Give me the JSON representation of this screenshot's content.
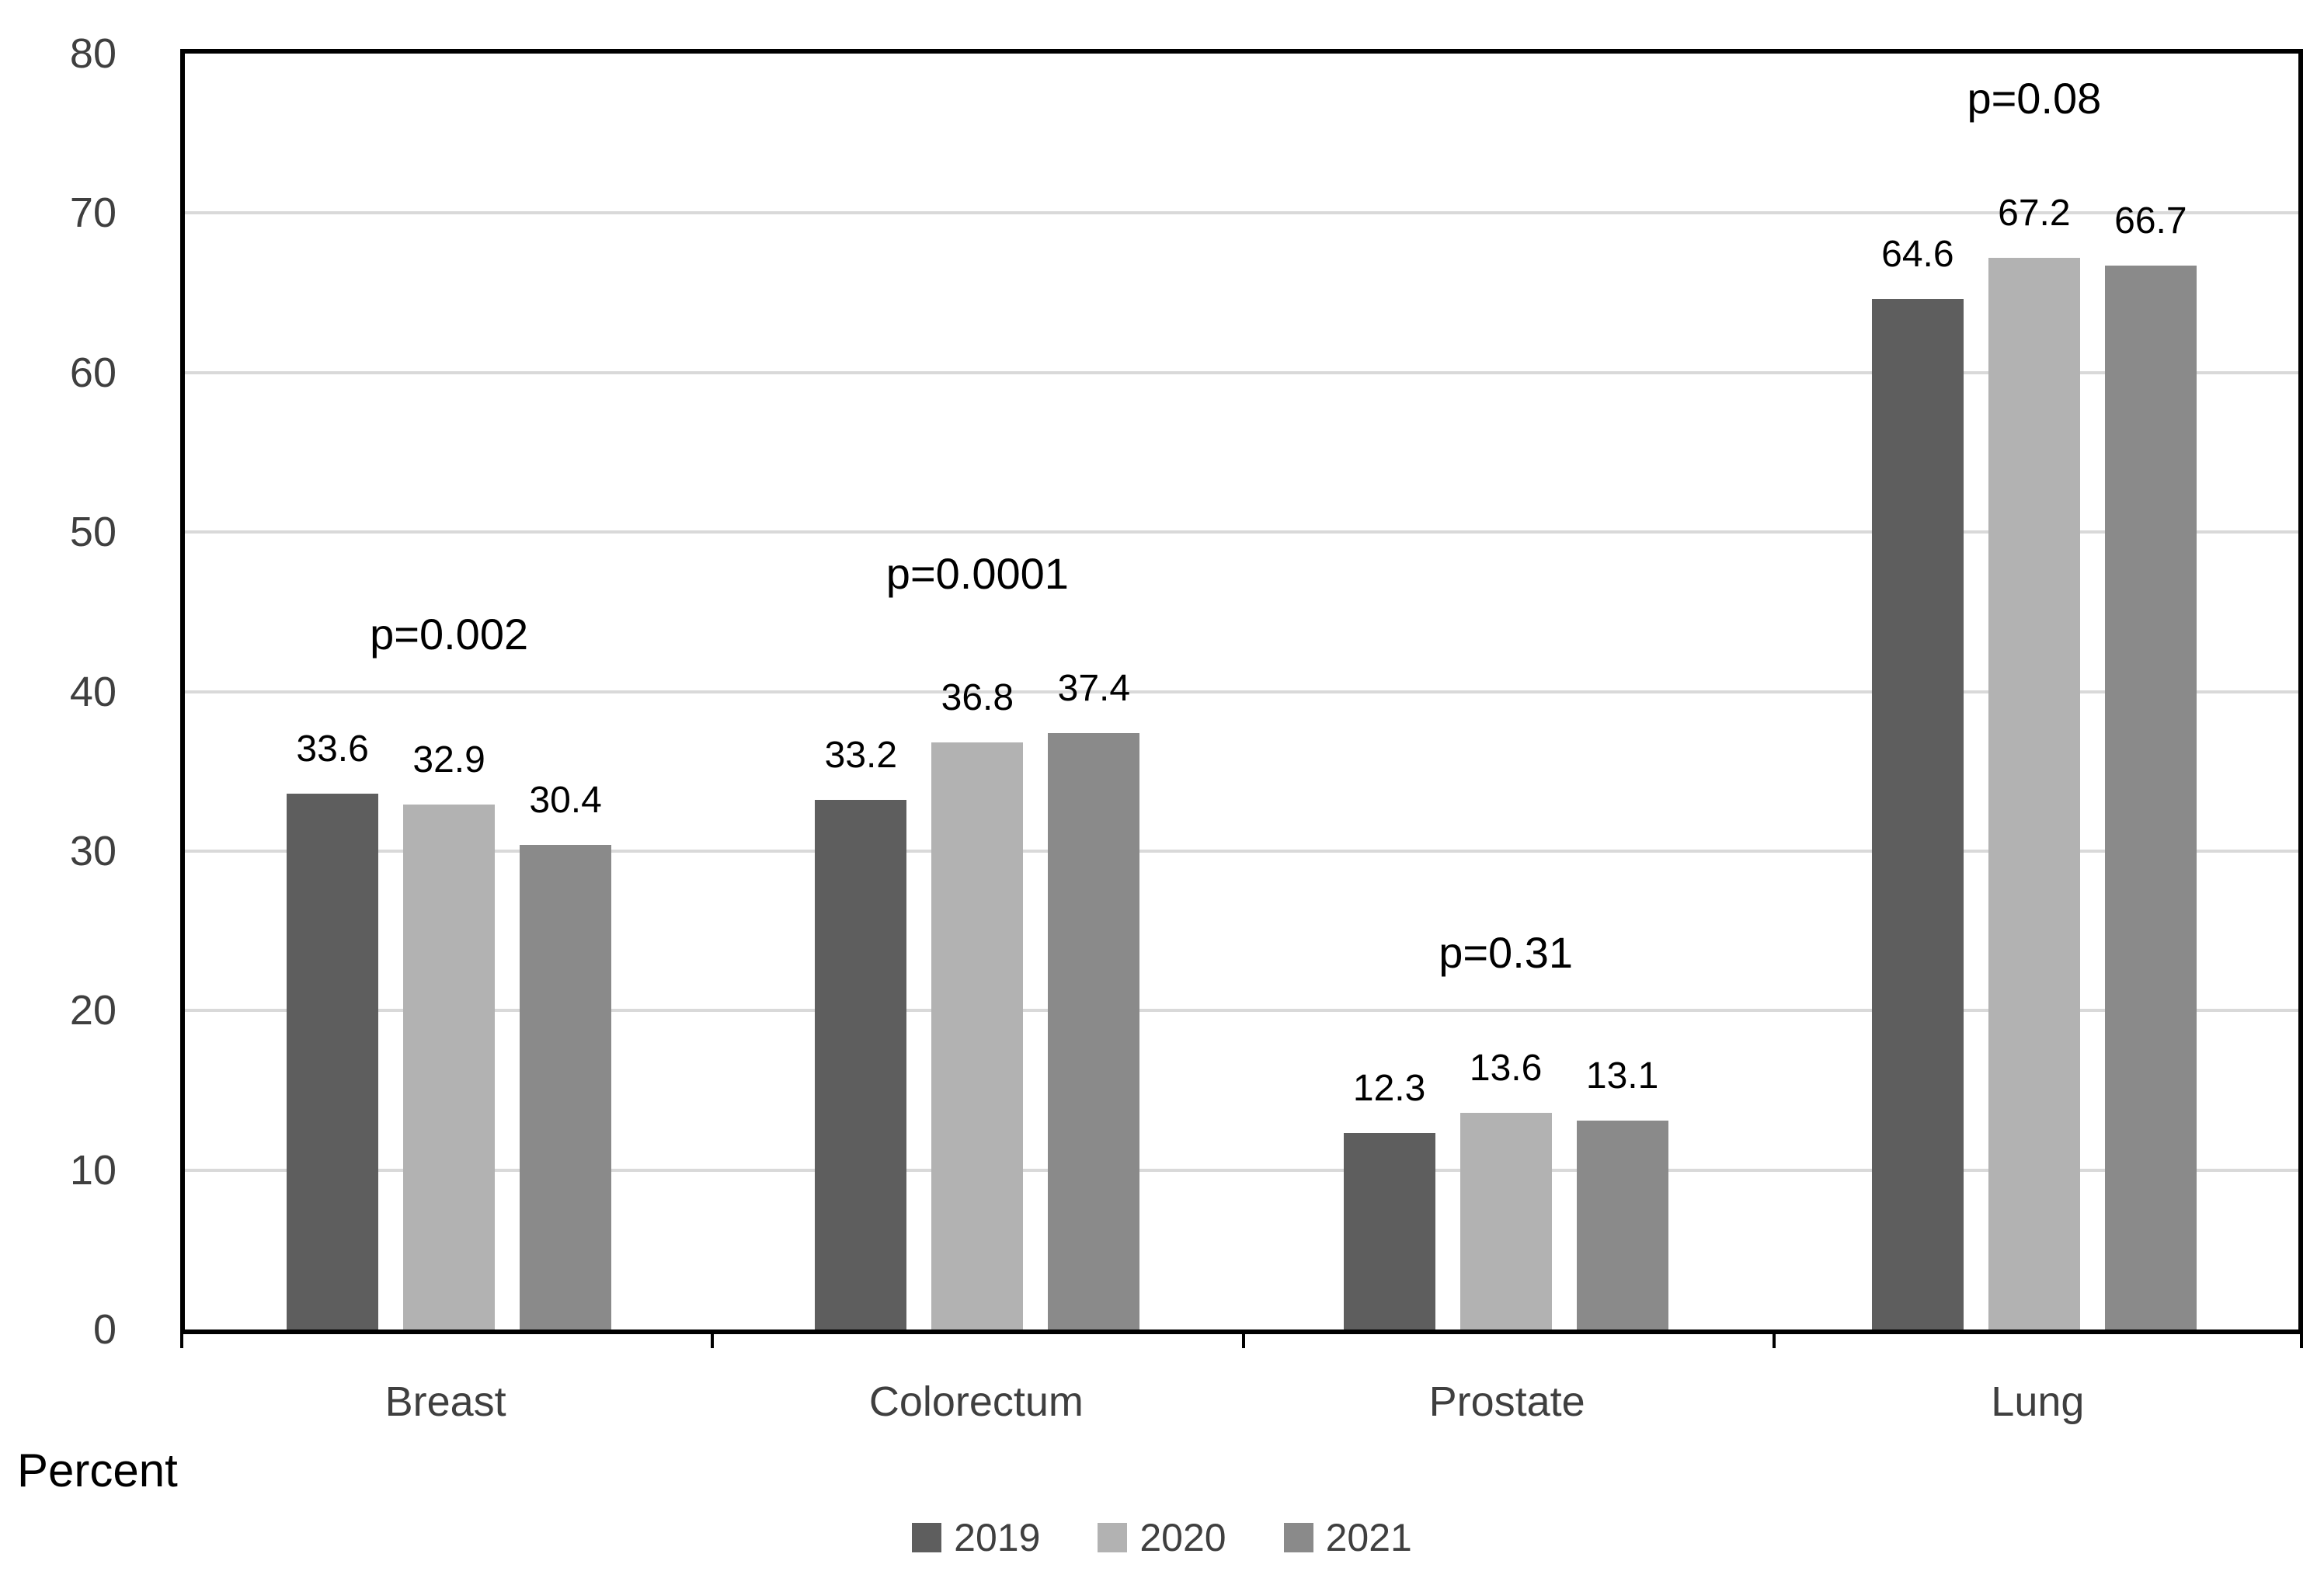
{
  "chart_data": {
    "type": "bar",
    "categories": [
      "Breast",
      "Colorectum",
      "Prostate",
      "Lung"
    ],
    "series": [
      {
        "name": "2019",
        "color": "#5e5e5e",
        "values": [
          33.6,
          33.2,
          12.3,
          64.6
        ]
      },
      {
        "name": "2020",
        "color": "#b2b2b2",
        "values": [
          32.9,
          36.8,
          13.6,
          67.2
        ]
      },
      {
        "name": "2021",
        "color": "#8a8a8a",
        "values": [
          30.4,
          37.4,
          13.1,
          66.7
        ]
      }
    ],
    "p_values": [
      "p=0.002",
      "p=0.0001",
      "p=0.31",
      "p=0.08"
    ],
    "data_labels": [
      [
        "33.6",
        "33.2",
        "12.3",
        "64.6"
      ],
      [
        "32.9",
        "36.8",
        "13.6",
        "67.2"
      ],
      [
        "30.4",
        "37.4",
        "13.1",
        "66.7"
      ]
    ],
    "title": "",
    "xlabel": "",
    "ylabel": "Percent",
    "ylim": [
      0,
      80
    ],
    "ytick_step": 10,
    "yticks": [
      "80",
      "70",
      "60",
      "50",
      "40",
      "30",
      "20",
      "10",
      "0"
    ],
    "grid": true,
    "legend_position": "bottom",
    "colors": {
      "gridline": "#d9d9d9",
      "axis_border": "#000000",
      "tick_label": "#3f3f3f",
      "category_label": "#3f3f3f",
      "data_label": "#000000",
      "p_value_label": "#000000",
      "axis_title": "#000000",
      "legend_label": "#3f3f3f",
      "background": "#ffffff"
    }
  },
  "legend": {
    "items": [
      {
        "label": "2019",
        "color": "#5e5e5e"
      },
      {
        "label": "2020",
        "color": "#b2b2b2"
      },
      {
        "label": "2021",
        "color": "#8a8a8a"
      }
    ]
  },
  "y_axis_title": "Percent"
}
